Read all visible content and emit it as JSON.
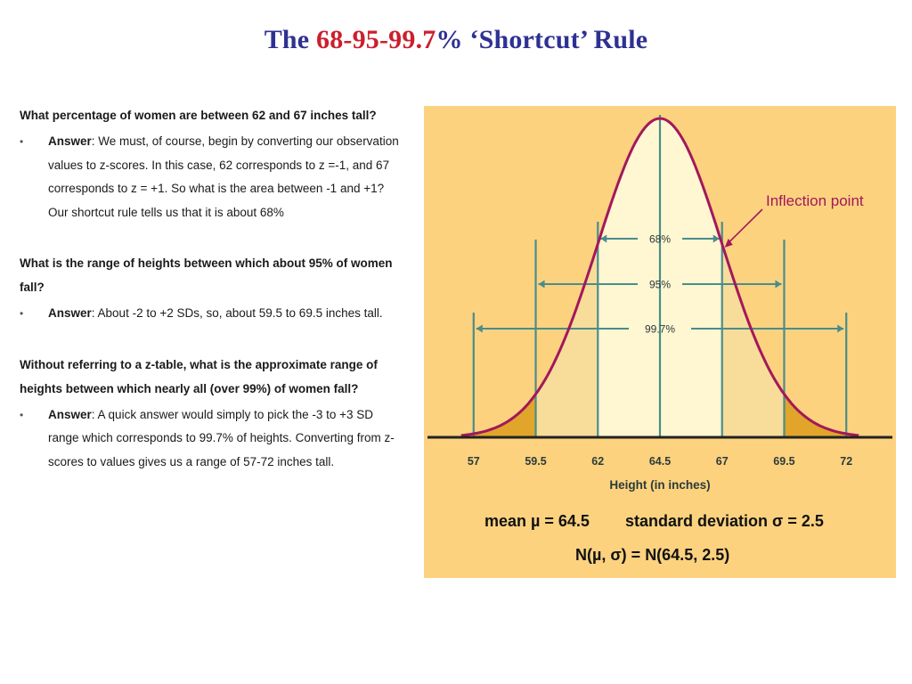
{
  "title": {
    "prefix": "The ",
    "highlight": "68-95-99.7",
    "suffix": "% ‘Shortcut’ Rule"
  },
  "colors": {
    "title_blue": "#2e3192",
    "title_red": "#cc1f2d",
    "panel_bg": "#fcd27f",
    "curve": "#a2185b",
    "inner_fill": "#fff6d2",
    "middle_fill": "#f8dc9a",
    "tail_fill": "#e0a52a",
    "guide_lines": "#4a8d8a",
    "axis": "#222222",
    "axis_labels": "#2b3b3a"
  },
  "qa": [
    {
      "question": "What percentage of women are between 62 and 67 inches tall?",
      "answer_label": "Answer",
      "answer_text": ": We must, of course, begin by converting our observation values to z-scores.  In this case,  62 corresponds to z =-1, and 67 corresponds to z = +1. So what is the area between -1 and +1?  Our shortcut rule tells us that it is about 68%"
    },
    {
      "question": "What is the range of heights between which about 95% of women fall?",
      "answer_label": "Answer",
      "answer_text": ": About -2 to +2 SDs, so, about 59.5 to 69.5 inches tall."
    },
    {
      "question": "Without referring to a z-table, what is the approximate range of heights between which nearly all (over 99%) of women fall?",
      "answer_label": "Answer",
      "answer_text": ": A quick answer would simply to pick the -3 to +3 SD range which corresponds to 99.7% of heights.  Converting from z-scores to values gives us a range of 57-72 inches tall."
    }
  ],
  "bullet": "•",
  "diagram": {
    "mean": 64.5,
    "sd": 2.5,
    "x_range": [
      55,
      74
    ],
    "ticks": [
      "57",
      "59.5",
      "62",
      "64.5",
      "67",
      "69.5",
      "72"
    ],
    "tick_values": [
      57,
      59.5,
      62,
      64.5,
      67,
      69.5,
      72
    ],
    "x_axis_label": "Height (in inches)",
    "intervals": [
      {
        "label": "68%",
        "from": 62,
        "to": 67
      },
      {
        "label": "95%",
        "from": 59.5,
        "to": 69.5
      },
      {
        "label": "99.7%",
        "from": 57,
        "to": 72
      }
    ],
    "annotation": "Inflection point",
    "annotation_at": 67
  },
  "stats": {
    "mean_text": "mean µ = 64.5",
    "sd_text": "standard deviation σ = 2.5",
    "dist_text": "N(µ, σ) =  N(64.5, 2.5)"
  }
}
